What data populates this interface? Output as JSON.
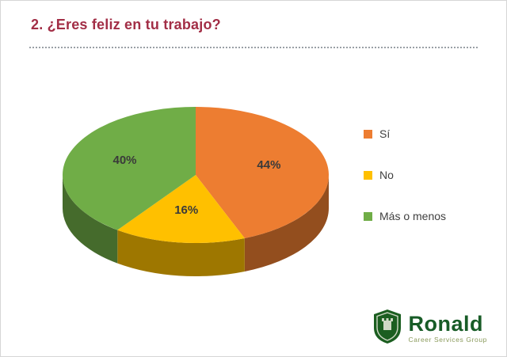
{
  "slide": {
    "title": "2.  ¿Eres feliz en tu trabajo?"
  },
  "chart_data": {
    "type": "pie",
    "style": "3d",
    "title": "¿Eres feliz en tu trabajo?",
    "start_angle_deg": -90,
    "direction": "clockwise",
    "legend_position": "right",
    "slices": [
      {
        "label": "Sí",
        "value": 44,
        "value_label": "44%",
        "color": "#ED7D31"
      },
      {
        "label": "No",
        "value": 16,
        "value_label": "16%",
        "color": "#FFC000"
      },
      {
        "label": "Más o menos",
        "value": 40,
        "value_label": "40%",
        "color": "#70AD47"
      }
    ],
    "value_label_color": "#3a3a3a"
  },
  "logo": {
    "name": "Ronald",
    "tagline": "Career Services Group"
  }
}
